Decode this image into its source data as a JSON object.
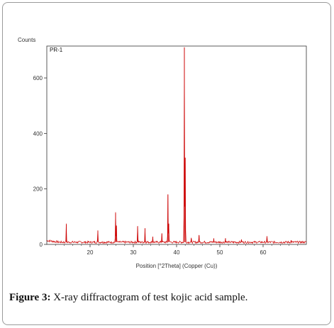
{
  "caption": {
    "figure_label": "Figure 3:",
    "text": " X-ray diffractogram of test kojic acid sample."
  },
  "chart_data": {
    "type": "line",
    "ylabel": "Counts",
    "xlabel": "Position [°2Theta] (Copper (Cu))",
    "sample_label": "PR-1",
    "xlim": [
      10,
      70
    ],
    "ylim": [
      0,
      715
    ],
    "x_ticks": [
      20,
      30,
      40,
      50,
      60
    ],
    "y_ticks": [
      0,
      200,
      400,
      600
    ],
    "grid": false,
    "line_color": "#cc0000",
    "baseline": 8,
    "peaks": [
      {
        "x": 14.5,
        "y": 72
      },
      {
        "x": 21.8,
        "y": 48
      },
      {
        "x": 25.9,
        "y": 113
      },
      {
        "x": 26.1,
        "y": 68
      },
      {
        "x": 31.0,
        "y": 66
      },
      {
        "x": 32.7,
        "y": 58
      },
      {
        "x": 34.5,
        "y": 28
      },
      {
        "x": 36.6,
        "y": 40
      },
      {
        "x": 38.0,
        "y": 180
      },
      {
        "x": 38.2,
        "y": 75
      },
      {
        "x": 41.8,
        "y": 710
      },
      {
        "x": 42.0,
        "y": 312
      },
      {
        "x": 43.4,
        "y": 20
      },
      {
        "x": 45.2,
        "y": 33
      },
      {
        "x": 48.6,
        "y": 20
      },
      {
        "x": 51.3,
        "y": 22
      },
      {
        "x": 55.0,
        "y": 18
      },
      {
        "x": 60.9,
        "y": 26
      },
      {
        "x": 66.5,
        "y": 14
      }
    ]
  }
}
